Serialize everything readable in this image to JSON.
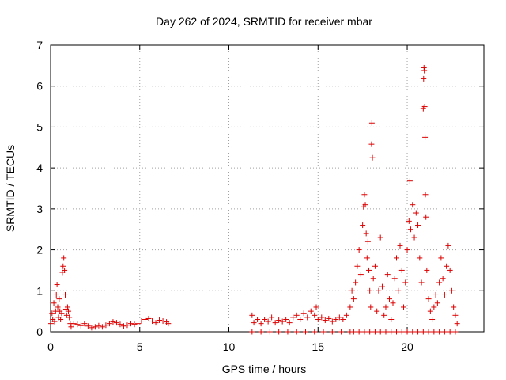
{
  "chart_data": {
    "type": "scatter",
    "title": "Day 262 of 2024, SRMTID for receiver mbar",
    "xlabel": "GPS time / hours",
    "ylabel": "SRMTID / TECUs",
    "xlim": [
      0,
      24.3
    ],
    "ylim": [
      0,
      7
    ],
    "xticks": [
      0,
      5,
      10,
      15,
      20
    ],
    "yticks": [
      0,
      1,
      2,
      3,
      4,
      5,
      6,
      7
    ],
    "grid": true,
    "marker": "+",
    "color": "#dd0000",
    "series": [
      {
        "name": "SRMTID",
        "points": [
          [
            0.02,
            0.2
          ],
          [
            0.08,
            0.45
          ],
          [
            0.12,
            0.3
          ],
          [
            0.18,
            0.7
          ],
          [
            0.22,
            0.25
          ],
          [
            0.28,
            0.5
          ],
          [
            0.32,
            0.9
          ],
          [
            0.36,
            1.15
          ],
          [
            0.4,
            0.6
          ],
          [
            0.44,
            0.35
          ],
          [
            0.48,
            0.8
          ],
          [
            0.52,
            0.5
          ],
          [
            0.56,
            0.3
          ],
          [
            0.62,
            0.45
          ],
          [
            0.66,
            1.45
          ],
          [
            0.7,
            1.6
          ],
          [
            0.74,
            1.8
          ],
          [
            0.78,
            1.5
          ],
          [
            0.82,
            0.9
          ],
          [
            0.86,
            0.55
          ],
          [
            0.9,
            0.4
          ],
          [
            0.95,
            0.6
          ],
          [
            1.0,
            0.5
          ],
          [
            1.05,
            0.35
          ],
          [
            1.1,
            0.2
          ],
          [
            1.15,
            0.12
          ],
          [
            1.3,
            0.2
          ],
          [
            1.5,
            0.18
          ],
          [
            1.7,
            0.15
          ],
          [
            1.9,
            0.2
          ],
          [
            2.1,
            0.14
          ],
          [
            2.3,
            0.1
          ],
          [
            2.5,
            0.12
          ],
          [
            2.7,
            0.15
          ],
          [
            2.9,
            0.12
          ],
          [
            3.1,
            0.16
          ],
          [
            3.3,
            0.2
          ],
          [
            3.5,
            0.24
          ],
          [
            3.7,
            0.22
          ],
          [
            3.9,
            0.18
          ],
          [
            4.1,
            0.14
          ],
          [
            4.3,
            0.16
          ],
          [
            4.5,
            0.2
          ],
          [
            4.7,
            0.18
          ],
          [
            4.9,
            0.2
          ],
          [
            5.1,
            0.26
          ],
          [
            5.3,
            0.3
          ],
          [
            5.5,
            0.32
          ],
          [
            5.7,
            0.26
          ],
          [
            5.9,
            0.22
          ],
          [
            6.1,
            0.28
          ],
          [
            6.3,
            0.26
          ],
          [
            6.5,
            0.24
          ],
          [
            6.6,
            0.2
          ],
          [
            11.3,
            0.4
          ],
          [
            11.4,
            0.22
          ],
          [
            11.6,
            0.3
          ],
          [
            11.8,
            0.2
          ],
          [
            12.0,
            0.3
          ],
          [
            12.2,
            0.25
          ],
          [
            12.4,
            0.35
          ],
          [
            12.6,
            0.22
          ],
          [
            12.8,
            0.28
          ],
          [
            13.0,
            0.25
          ],
          [
            13.2,
            0.3
          ],
          [
            13.4,
            0.22
          ],
          [
            13.6,
            0.35
          ],
          [
            13.8,
            0.4
          ],
          [
            14.0,
            0.3
          ],
          [
            14.2,
            0.45
          ],
          [
            14.4,
            0.35
          ],
          [
            14.6,
            0.5
          ],
          [
            14.8,
            0.4
          ],
          [
            14.9,
            0.6
          ],
          [
            15.0,
            0.3
          ],
          [
            15.2,
            0.35
          ],
          [
            15.4,
            0.28
          ],
          [
            15.6,
            0.32
          ],
          [
            15.8,
            0.25
          ],
          [
            16.0,
            0.3
          ],
          [
            16.2,
            0.35
          ],
          [
            16.4,
            0.3
          ],
          [
            16.6,
            0.4
          ],
          [
            16.8,
            0.6
          ],
          [
            16.9,
            1.0
          ],
          [
            17.0,
            0.8
          ],
          [
            17.1,
            1.2
          ],
          [
            17.2,
            1.6
          ],
          [
            17.3,
            2.0
          ],
          [
            17.4,
            1.4
          ],
          [
            17.5,
            2.6
          ],
          [
            17.55,
            3.05
          ],
          [
            17.6,
            3.35
          ],
          [
            17.65,
            3.1
          ],
          [
            17.7,
            2.4
          ],
          [
            17.75,
            1.8
          ],
          [
            17.8,
            2.2
          ],
          [
            17.85,
            1.5
          ],
          [
            17.9,
            1.0
          ],
          [
            17.95,
            0.6
          ],
          [
            18.0,
            4.58
          ],
          [
            18.02,
            5.1
          ],
          [
            18.05,
            4.25
          ],
          [
            18.1,
            1.3
          ],
          [
            18.2,
            1.6
          ],
          [
            18.3,
            0.5
          ],
          [
            18.4,
            1.0
          ],
          [
            18.5,
            2.3
          ],
          [
            18.6,
            1.1
          ],
          [
            18.7,
            0.4
          ],
          [
            18.8,
            0.6
          ],
          [
            18.9,
            1.4
          ],
          [
            19.0,
            0.8
          ],
          [
            19.1,
            0.3
          ],
          [
            19.2,
            0.7
          ],
          [
            19.3,
            1.3
          ],
          [
            19.4,
            1.8
          ],
          [
            19.5,
            1.0
          ],
          [
            19.6,
            2.1
          ],
          [
            19.7,
            1.5
          ],
          [
            19.8,
            0.6
          ],
          [
            19.9,
            1.2
          ],
          [
            20.0,
            2.0
          ],
          [
            20.1,
            2.7
          ],
          [
            20.15,
            3.68
          ],
          [
            20.2,
            2.5
          ],
          [
            20.3,
            3.1
          ],
          [
            20.4,
            2.3
          ],
          [
            20.5,
            2.9
          ],
          [
            20.6,
            2.6
          ],
          [
            20.7,
            1.8
          ],
          [
            20.8,
            1.2
          ],
          [
            20.9,
            5.45
          ],
          [
            20.92,
            6.18
          ],
          [
            20.94,
            6.45
          ],
          [
            20.96,
            6.38
          ],
          [
            20.98,
            5.5
          ],
          [
            21.0,
            4.75
          ],
          [
            21.02,
            3.35
          ],
          [
            21.05,
            2.8
          ],
          [
            21.1,
            1.5
          ],
          [
            21.2,
            0.8
          ],
          [
            21.3,
            0.5
          ],
          [
            21.4,
            0.3
          ],
          [
            21.5,
            0.6
          ],
          [
            21.6,
            0.9
          ],
          [
            21.7,
            0.7
          ],
          [
            21.8,
            1.2
          ],
          [
            21.9,
            1.8
          ],
          [
            22.0,
            1.3
          ],
          [
            22.1,
            0.9
          ],
          [
            22.2,
            1.6
          ],
          [
            22.3,
            2.1
          ],
          [
            22.4,
            1.5
          ],
          [
            22.5,
            1.0
          ],
          [
            22.6,
            0.6
          ],
          [
            22.7,
            0.4
          ],
          [
            22.8,
            0.2
          ],
          [
            17.0,
            0.0
          ],
          [
            17.3,
            0.0
          ],
          [
            17.6,
            0.0
          ],
          [
            17.9,
            0.0
          ],
          [
            18.2,
            0.0
          ],
          [
            18.5,
            0.0
          ],
          [
            18.8,
            0.0
          ],
          [
            19.1,
            0.0
          ],
          [
            19.4,
            0.0
          ],
          [
            19.7,
            0.0
          ],
          [
            20.0,
            0.0
          ],
          [
            20.3,
            0.0
          ],
          [
            20.6,
            0.0
          ],
          [
            20.9,
            0.0
          ],
          [
            21.2,
            0.0
          ],
          [
            21.5,
            0.0
          ],
          [
            21.8,
            0.0
          ],
          [
            22.1,
            0.0
          ],
          [
            22.4,
            0.0
          ],
          [
            22.7,
            0.0
          ],
          [
            11.3,
            0.0
          ],
          [
            11.8,
            0.0
          ],
          [
            12.3,
            0.0
          ],
          [
            12.8,
            0.0
          ],
          [
            13.3,
            0.0
          ],
          [
            13.8,
            0.0
          ],
          [
            14.3,
            0.0
          ],
          [
            14.8,
            0.0
          ],
          [
            15.3,
            0.0
          ],
          [
            15.8,
            0.0
          ],
          [
            16.3,
            0.0
          ],
          [
            16.8,
            0.0
          ]
        ]
      }
    ]
  }
}
